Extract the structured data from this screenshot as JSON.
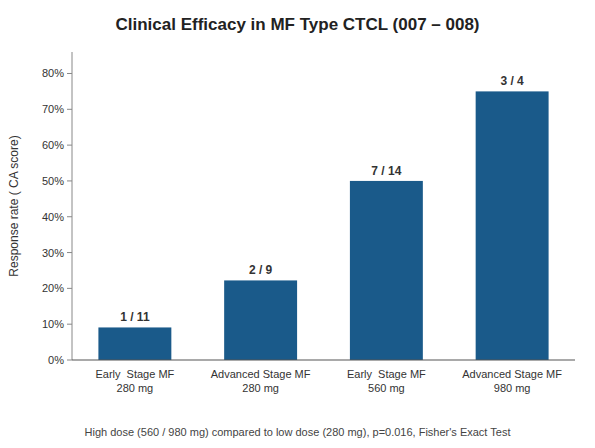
{
  "chart_data": {
    "type": "bar",
    "title": "Clinical Efficacy in MF Type CTCL (007 – 008)",
    "ylabel": "Response rate ( CA score)",
    "annotations": [
      "High dose (560 / 980 mg) compared to low dose (280 mg), p=0.016, Fisher's Exact Test"
    ],
    "categories": [
      "Early  Stage MF\n280 mg",
      "Advanced Stage MF\n280 mg",
      "Early  Stage MF\n560 mg",
      "Advanced Stage MF\n980 mg"
    ],
    "values": [
      0.0909,
      0.2222,
      0.5,
      0.75
    ],
    "value_labels": [
      "1 / 11",
      "2 / 9",
      "7 / 14",
      "3 / 4"
    ],
    "data_labels": true,
    "color": "#1a5a8a",
    "ylim": [
      0,
      0.86
    ],
    "yticks": [
      {
        "value": 0.0,
        "label": "0%"
      },
      {
        "value": 0.1,
        "label": "10%"
      },
      {
        "value": 0.2,
        "label": "20%"
      },
      {
        "value": 0.3,
        "label": "30%"
      },
      {
        "value": 0.4,
        "label": "40%"
      },
      {
        "value": 0.5,
        "label": "50%"
      },
      {
        "value": 0.6,
        "label": "60%"
      },
      {
        "value": 0.7,
        "label": "70%"
      },
      {
        "value": 0.8,
        "label": "80%"
      }
    ],
    "grid": false
  }
}
